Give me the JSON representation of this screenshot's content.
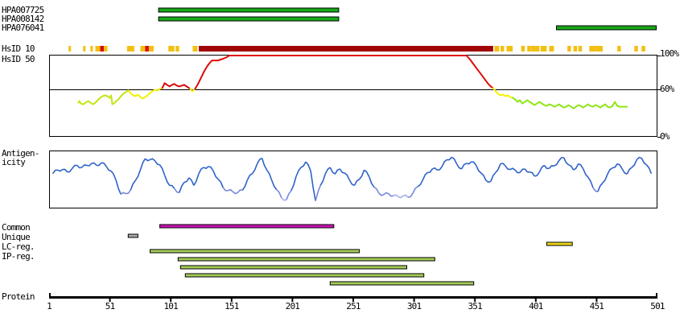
{
  "colors": {
    "hpa_bar": "#17A817",
    "mark_yellow": "#F2C014",
    "mark_red": "#DC0A0A",
    "mark_darkred": "#A00505",
    "identity_red": "#DC0A0A",
    "identity_yellow": "#F2F20A",
    "identity_greenyellow_left": "#C6E414",
    "identity_green_right": "#8FE614",
    "antigenicity_main": "#2F62C8",
    "antigenicity_mid": "#7687DC",
    "antigenicity_light": "#A8ACEE",
    "region_common": "#C814B4",
    "region_unique": "#ABABAB",
    "region_lc": "#EDD818",
    "region_ip": "#A6CE58"
  },
  "chart_data": {
    "type": "line",
    "x_axis": {
      "label": "Protein",
      "min": 1,
      "max": 501,
      "ticks": [
        1,
        51,
        101,
        151,
        201,
        251,
        301,
        351,
        401,
        451,
        501
      ]
    },
    "antigen_tracks": [
      {
        "id": "HPA007725",
        "start": 91,
        "end": 239
      },
      {
        "id": "HPA008142",
        "start": 91,
        "end": 239
      },
      {
        "id": "HPA076041",
        "start": 418,
        "end": 500
      }
    ],
    "identity": {
      "row10_label": "HsID 10",
      "row50_label": "HsID 50",
      "y_tick_labels": [
        "100%",
        "60%",
        "0%"
      ],
      "gridline_percent": 60,
      "marks": [
        {
          "s": 17,
          "l": 2,
          "c": "y"
        },
        {
          "s": 29,
          "l": 2,
          "c": "y"
        },
        {
          "s": 35,
          "l": 2,
          "c": "y"
        },
        {
          "s": 39,
          "l": 4,
          "c": "y"
        },
        {
          "s": 43,
          "l": 3,
          "c": "r"
        },
        {
          "s": 46,
          "l": 3,
          "c": "y"
        },
        {
          "s": 65,
          "l": 6,
          "c": "y"
        },
        {
          "s": 76,
          "l": 4,
          "c": "y"
        },
        {
          "s": 80,
          "l": 3,
          "c": "r"
        },
        {
          "s": 83,
          "l": 4,
          "c": "y"
        },
        {
          "s": 99,
          "l": 5,
          "c": "y"
        },
        {
          "s": 105,
          "l": 3,
          "c": "y"
        },
        {
          "s": 119,
          "l": 4,
          "c": "y"
        },
        {
          "s": 124,
          "l": 242,
          "c": "d"
        },
        {
          "s": 367,
          "l": 4,
          "c": "y"
        },
        {
          "s": 372,
          "l": 3,
          "c": "y"
        },
        {
          "s": 377,
          "l": 5,
          "c": "y"
        },
        {
          "s": 389,
          "l": 3,
          "c": "y"
        },
        {
          "s": 394,
          "l": 3,
          "c": "y"
        },
        {
          "s": 397,
          "l": 7,
          "c": "y"
        },
        {
          "s": 405,
          "l": 5,
          "c": "y"
        },
        {
          "s": 412,
          "l": 4,
          "c": "y"
        },
        {
          "s": 427,
          "l": 3,
          "c": "y"
        },
        {
          "s": 432,
          "l": 3,
          "c": "y"
        },
        {
          "s": 436,
          "l": 3,
          "c": "y"
        },
        {
          "s": 445,
          "l": 6,
          "c": "y"
        },
        {
          "s": 451,
          "l": 5,
          "c": "y"
        },
        {
          "s": 468,
          "l": 3,
          "c": "y"
        },
        {
          "s": 482,
          "l": 3,
          "c": "y"
        },
        {
          "s": 488,
          "l": 3,
          "c": "y"
        }
      ],
      "curve_segments": [
        {
          "color": "identity_greenyellow_left",
          "points": [
            [
              25,
              42
            ],
            [
              26,
              44
            ],
            [
              27,
              41
            ],
            [
              29,
              40
            ],
            [
              31,
              42
            ],
            [
              33,
              44
            ],
            [
              35,
              42
            ],
            [
              37,
              40
            ],
            [
              39,
              42
            ],
            [
              41,
              45
            ],
            [
              43,
              48
            ],
            [
              45,
              50
            ],
            [
              47,
              51
            ],
            [
              49,
              50
            ],
            [
              51,
              48
            ],
            [
              52,
              51
            ],
            [
              53,
              40
            ],
            [
              55,
              42
            ],
            [
              56,
              44
            ],
            [
              58,
              46
            ],
            [
              60,
              50
            ],
            [
              62,
              53
            ],
            [
              64,
              55
            ],
            [
              66,
              57
            ]
          ]
        },
        {
          "color": "identity_yellow",
          "points": [
            [
              66,
              57
            ],
            [
              68,
              54
            ],
            [
              70,
              51
            ],
            [
              72,
              50
            ],
            [
              74,
              52
            ],
            [
              76,
              49
            ],
            [
              78,
              47
            ],
            [
              80,
              49
            ],
            [
              82,
              51
            ],
            [
              84,
              54
            ],
            [
              86,
              56
            ],
            [
              88,
              58
            ],
            [
              90,
              57
            ],
            [
              92,
              59
            ],
            [
              94,
              60
            ]
          ]
        },
        {
          "color": "identity_red",
          "points": [
            [
              94,
              60
            ],
            [
              95,
              63
            ],
            [
              96,
              66
            ],
            [
              98,
              64
            ],
            [
              100,
              62
            ],
            [
              102,
              64
            ],
            [
              104,
              65
            ],
            [
              106,
              63
            ],
            [
              108,
              62
            ],
            [
              110,
              63
            ],
            [
              112,
              64
            ],
            [
              114,
              62
            ],
            [
              116,
              60
            ],
            [
              117,
              59
            ]
          ]
        },
        {
          "color": "identity_yellow",
          "points": [
            [
              117,
              59
            ],
            [
              118,
              57
            ],
            [
              119,
              56
            ],
            [
              120,
              58
            ],
            [
              121,
              59
            ]
          ]
        },
        {
          "color": "identity_red",
          "points": [
            [
              121,
              59
            ],
            [
              123,
              64
            ],
            [
              125,
              70
            ],
            [
              127,
              76
            ],
            [
              129,
              82
            ],
            [
              131,
              87
            ],
            [
              133,
              91
            ],
            [
              135,
              94
            ],
            [
              140,
              94
            ],
            [
              142,
              95
            ],
            [
              144,
              96
            ],
            [
              147,
              98
            ],
            [
              149,
              100
            ],
            [
              344,
              100
            ],
            [
              347,
              95
            ],
            [
              350,
              89
            ],
            [
              353,
              83
            ],
            [
              356,
              77
            ],
            [
              359,
              71
            ],
            [
              362,
              65
            ],
            [
              364,
              62
            ],
            [
              366,
              60
            ]
          ]
        },
        {
          "color": "identity_yellow",
          "points": [
            [
              366,
              60
            ],
            [
              368,
              56
            ],
            [
              370,
              53
            ],
            [
              372,
              51
            ],
            [
              374,
              52
            ],
            [
              376,
              50
            ],
            [
              378,
              51
            ],
            [
              380,
              49
            ],
            [
              382,
              48
            ]
          ]
        },
        {
          "color": "identity_green_right",
          "points": [
            [
              382,
              48
            ],
            [
              384,
              46
            ],
            [
              386,
              43
            ],
            [
              388,
              45
            ],
            [
              390,
              41
            ],
            [
              392,
              43
            ],
            [
              394,
              45
            ],
            [
              396,
              43
            ],
            [
              398,
              41
            ],
            [
              400,
              39
            ],
            [
              402,
              41
            ],
            [
              404,
              43
            ],
            [
              406,
              41
            ],
            [
              408,
              39
            ],
            [
              410,
              38
            ],
            [
              412,
              40
            ],
            [
              414,
              39
            ],
            [
              416,
              37
            ],
            [
              418,
              38
            ],
            [
              420,
              40
            ],
            [
              422,
              38
            ],
            [
              424,
              36
            ],
            [
              426,
              37
            ],
            [
              428,
              39
            ],
            [
              430,
              37
            ],
            [
              432,
              35
            ],
            [
              434,
              37
            ],
            [
              436,
              39
            ],
            [
              438,
              38
            ],
            [
              440,
              36
            ],
            [
              442,
              38
            ],
            [
              444,
              40
            ],
            [
              446,
              38
            ],
            [
              448,
              37
            ],
            [
              450,
              39
            ],
            [
              452,
              38
            ],
            [
              454,
              36
            ],
            [
              456,
              38
            ],
            [
              458,
              40
            ],
            [
              460,
              37
            ],
            [
              462,
              36
            ],
            [
              464,
              38
            ],
            [
              466,
              43
            ],
            [
              468,
              38
            ],
            [
              470,
              37
            ],
            [
              472,
              37
            ],
            [
              474,
              37
            ],
            [
              476,
              37
            ]
          ]
        }
      ]
    },
    "antigenicity": {
      "label": [
        "Antigen-",
        "icity"
      ],
      "aa_start": 4,
      "aa_step": 4,
      "light_below": 20,
      "mid_below": 36,
      "scores": [
        63,
        70,
        71,
        66,
        73,
        79,
        75,
        79,
        83,
        79,
        84,
        77,
        68,
        50,
        23,
        24,
        31,
        50,
        70,
        92,
        90,
        88,
        80,
        60,
        40,
        34,
        26,
        46,
        55,
        40,
        63,
        75,
        77,
        68,
        52,
        36,
        30,
        28,
        26,
        31,
        51,
        63,
        82,
        93,
        70,
        50,
        32,
        16,
        12,
        30,
        57,
        75,
        86,
        68,
        10,
        40,
        62,
        75,
        62,
        72,
        64,
        50,
        40,
        52,
        70,
        57,
        37,
        25,
        22,
        24,
        20,
        18,
        20,
        17,
        25,
        38,
        50,
        65,
        72,
        70,
        77,
        90,
        95,
        82,
        72,
        83,
        86,
        79,
        64,
        50,
        48,
        65,
        82,
        78,
        71,
        70,
        65,
        72,
        66,
        58,
        66,
        79,
        73,
        78,
        88,
        94,
        80,
        70,
        82,
        72,
        56,
        36,
        28,
        45,
        62,
        74,
        82,
        72,
        62,
        75,
        90,
        93,
        80,
        63
      ]
    },
    "regions": {
      "rows": [
        {
          "label": "Common",
          "color": "region_common",
          "bars": [
            {
              "start": 92,
              "end": 235
            }
          ]
        },
        {
          "label": "Unique",
          "color": "region_unique",
          "bars": [
            {
              "start": 66,
              "end": 74
            }
          ]
        },
        {
          "label": "LC-reg.",
          "color": "region_lc",
          "bars": [
            {
              "start": 410,
              "end": 431
            }
          ]
        },
        {
          "label": "IP-reg.",
          "color": "region_ip",
          "bars": [
            {
              "start": 84,
              "end": 256
            },
            {
              "start": 107,
              "end": 318
            },
            {
              "start": 109,
              "end": 295
            },
            {
              "start": 113,
              "end": 309
            },
            {
              "start": 232,
              "end": 350
            }
          ]
        }
      ]
    }
  }
}
